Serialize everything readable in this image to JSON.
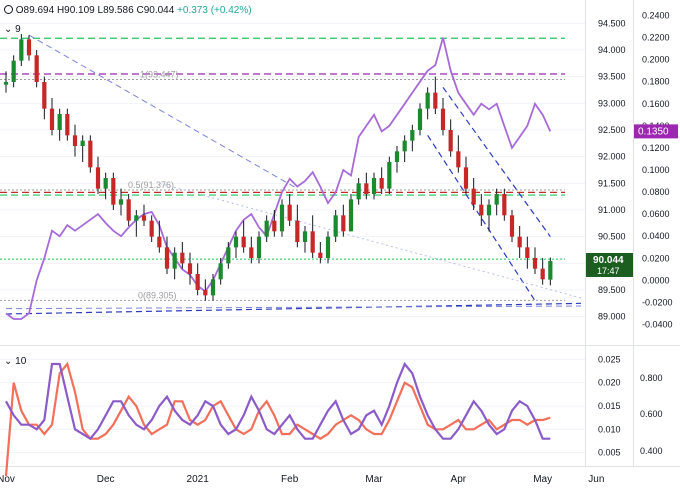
{
  "header": {
    "symbol_icon": "chart-circle-icon",
    "open": "O89.694",
    "high": "H90.109",
    "low": "L89.586",
    "close": "C90.044",
    "change": "+0.373 (+0.42%)",
    "top_indicator_len": "9",
    "bottom_indicator_len": "10"
  },
  "colors": {
    "up": "#1b8a2e",
    "down": "#c62828",
    "wick": "#131722",
    "indicator": "#a66ad9",
    "green_dash": "#22c55e",
    "purple_dash": "#9c27b0",
    "red_dash": "#c62828",
    "blue_dash": "#2b3bbd",
    "fib_grey": "#9e9e9e",
    "price_label_bg": "#1b5e20",
    "ind_label_bg": "#9c27b0",
    "atr_lower": "#f26f5a",
    "atr_upper": "#8b5cc9"
  },
  "chart_data": [
    {
      "type": "candlestick",
      "x_ticks": [
        "Nov",
        "Dec",
        "2021",
        "Feb",
        "Mar",
        "Apr",
        "May",
        "Jun"
      ],
      "left_axis_ticks": [
        "94.500",
        "94.000",
        "93.500",
        "93.000",
        "92.500",
        "92.000",
        "91.500",
        "91.000",
        "90.500",
        "90.000",
        "89.500",
        "89.000"
      ],
      "left_ylim": [
        88.75,
        94.75
      ],
      "right_axis_ticks": [
        "0.2400",
        "0.2200",
        "0.2000",
        "0.1800",
        "0.1600",
        "0.1400",
        "0.1200",
        "0.1000",
        "0.0800",
        "0.0600",
        "0.0400",
        "0.0200",
        "0.0000",
        "-0.0200",
        "-0.0400"
      ],
      "right_ylim": [
        -0.045,
        0.245
      ],
      "fib_labels": [
        "1(93.447)",
        "0.5(91.376)",
        "0(89.305)"
      ],
      "last_price_label": "90.044",
      "countdown_label": "17:47",
      "indicator_value_label": "0.1350",
      "horizontal_levels": [
        {
          "value": 94.22,
          "style": "green-dash"
        },
        {
          "value": 93.55,
          "style": "purple-dash"
        },
        {
          "value": 93.447,
          "style": "fib-grey"
        },
        {
          "value": 91.376,
          "style": "fib-grey"
        },
        {
          "value": 91.33,
          "style": "red-dash"
        },
        {
          "value": 91.28,
          "style": "green-dash"
        },
        {
          "value": 90.08,
          "style": "green-dot"
        },
        {
          "value": 89.305,
          "style": "fib-grey"
        }
      ],
      "candles": [
        [
          93.35,
          93.6,
          93.2,
          93.4
        ],
        [
          93.4,
          93.9,
          93.3,
          93.8
        ],
        [
          93.8,
          94.3,
          93.7,
          94.2
        ],
        [
          94.2,
          94.28,
          93.8,
          93.9
        ],
        [
          93.9,
          94.0,
          93.3,
          93.4
        ],
        [
          93.4,
          93.5,
          92.7,
          92.9
        ],
        [
          92.9,
          93.1,
          92.4,
          92.5
        ],
        [
          92.5,
          92.9,
          92.3,
          92.8
        ],
        [
          92.8,
          92.9,
          92.3,
          92.4
        ],
        [
          92.4,
          92.6,
          92.0,
          92.2
        ],
        [
          92.2,
          92.4,
          91.9,
          92.3
        ],
        [
          92.3,
          92.4,
          91.7,
          91.8
        ],
        [
          91.8,
          92.0,
          91.3,
          91.4
        ],
        [
          91.4,
          91.7,
          91.2,
          91.6
        ],
        [
          91.6,
          91.7,
          91.0,
          91.1
        ],
        [
          91.1,
          91.4,
          90.9,
          91.2
        ],
        [
          91.2,
          91.3,
          90.7,
          90.8
        ],
        [
          90.8,
          91.0,
          90.5,
          90.9
        ],
        [
          90.9,
          91.1,
          90.7,
          90.8
        ],
        [
          90.8,
          90.9,
          90.4,
          90.5
        ],
        [
          90.5,
          90.8,
          90.2,
          90.3
        ],
        [
          90.3,
          90.5,
          89.8,
          89.9
        ],
        [
          89.9,
          90.3,
          89.7,
          90.2
        ],
        [
          90.2,
          90.4,
          89.9,
          90.0
        ],
        [
          90.0,
          90.2,
          89.6,
          89.8
        ],
        [
          89.8,
          90.0,
          89.4,
          89.5
        ],
        [
          89.5,
          89.7,
          89.3,
          89.4
        ],
        [
          89.4,
          89.8,
          89.3,
          89.7
        ],
        [
          89.7,
          90.1,
          89.6,
          90.0
        ],
        [
          90.0,
          90.4,
          89.9,
          90.3
        ],
        [
          90.3,
          90.6,
          90.1,
          90.5
        ],
        [
          90.5,
          90.8,
          90.2,
          90.3
        ],
        [
          90.3,
          90.5,
          90.0,
          90.1
        ],
        [
          90.1,
          90.6,
          90.0,
          90.5
        ],
        [
          90.5,
          90.9,
          90.4,
          90.8
        ],
        [
          90.8,
          91.0,
          90.5,
          90.6
        ],
        [
          90.6,
          91.2,
          90.5,
          91.1
        ],
        [
          91.1,
          91.3,
          90.7,
          90.8
        ],
        [
          90.8,
          91.1,
          90.3,
          90.4
        ],
        [
          90.4,
          90.7,
          90.2,
          90.6
        ],
        [
          90.6,
          90.9,
          90.1,
          90.2
        ],
        [
          90.2,
          90.4,
          90.0,
          90.1
        ],
        [
          90.1,
          90.6,
          90.0,
          90.5
        ],
        [
          90.5,
          91.0,
          90.4,
          90.9
        ],
        [
          90.9,
          91.1,
          90.5,
          90.6
        ],
        [
          90.6,
          91.3,
          90.6,
          91.2
        ],
        [
          91.2,
          91.6,
          91.1,
          91.5
        ],
        [
          91.5,
          91.7,
          91.2,
          91.3
        ],
        [
          91.3,
          91.7,
          91.2,
          91.6
        ],
        [
          91.6,
          91.8,
          91.3,
          91.4
        ],
        [
          91.4,
          92.0,
          91.3,
          91.9
        ],
        [
          91.9,
          92.2,
          91.7,
          92.1
        ],
        [
          92.1,
          92.4,
          91.9,
          92.3
        ],
        [
          92.3,
          92.6,
          92.1,
          92.5
        ],
        [
          92.5,
          93.0,
          92.4,
          92.9
        ],
        [
          92.9,
          93.3,
          92.7,
          93.2
        ],
        [
          93.2,
          93.5,
          92.8,
          92.9
        ],
        [
          92.9,
          93.1,
          92.4,
          92.5
        ],
        [
          92.5,
          92.7,
          92.0,
          92.1
        ],
        [
          92.1,
          92.4,
          91.7,
          91.8
        ],
        [
          91.8,
          92.0,
          91.3,
          91.4
        ],
        [
          91.4,
          91.6,
          91.0,
          91.1
        ],
        [
          91.1,
          91.3,
          90.7,
          90.9
        ],
        [
          90.9,
          91.2,
          90.6,
          91.1
        ],
        [
          91.1,
          91.4,
          90.9,
          91.3
        ],
        [
          91.3,
          91.4,
          90.8,
          90.9
        ],
        [
          90.9,
          91.0,
          90.4,
          90.5
        ],
        [
          90.5,
          90.7,
          90.1,
          90.3
        ],
        [
          90.3,
          90.5,
          89.9,
          90.1
        ],
        [
          90.1,
          90.3,
          89.8,
          89.9
        ],
        [
          89.9,
          90.1,
          89.6,
          89.7
        ],
        [
          89.694,
          90.109,
          89.586,
          90.044
        ]
      ],
      "indicator_line": [
        -0.03,
        -0.035,
        -0.035,
        -0.03,
        0.0,
        0.02,
        0.045,
        0.04,
        0.05,
        0.045,
        0.05,
        0.055,
        0.06,
        0.052,
        0.045,
        0.04,
        0.048,
        0.055,
        0.06,
        0.062,
        0.05,
        0.03,
        0.02,
        0.01,
        0.005,
        -0.005,
        -0.01,
        0.0,
        0.015,
        0.03,
        0.045,
        0.055,
        0.06,
        0.048,
        0.04,
        0.06,
        0.08,
        0.092,
        0.085,
        0.09,
        0.098,
        0.085,
        0.07,
        0.08,
        0.1,
        0.095,
        0.13,
        0.14,
        0.15,
        0.135,
        0.14,
        0.15,
        0.16,
        0.17,
        0.18,
        0.19,
        0.195,
        0.22,
        0.19,
        0.17,
        0.16,
        0.15,
        0.16,
        0.155,
        0.16,
        0.14,
        0.12,
        0.13,
        0.14,
        0.16,
        0.15,
        0.135
      ],
      "trendlines": [
        {
          "name": "upper-channel",
          "from": [
            3,
            94.28
          ],
          "to": [
            38,
            91.4
          ],
          "style": "light-blue-dash"
        },
        {
          "name": "upper-channel-2",
          "from": [
            57,
            93.3
          ],
          "to": [
            71,
            90.5
          ],
          "style": "blue-dash"
        },
        {
          "name": "lower-channel",
          "from": [
            55,
            92.4
          ],
          "to": [
            69,
            89.3
          ],
          "style": "blue-dash"
        },
        {
          "name": "support-line",
          "from": [
            0,
            89.05
          ],
          "to": [
            75,
            89.25
          ],
          "style": "blue-dash"
        },
        {
          "name": "support-line-2",
          "from": [
            0,
            89.15
          ],
          "to": [
            75,
            89.2
          ],
          "style": "light-blue-dash"
        },
        {
          "name": "dotted-diagonal",
          "from": [
            20,
            91.5
          ],
          "to": [
            75,
            89.35
          ],
          "style": "light-blue-dot"
        }
      ]
    },
    {
      "type": "line",
      "right_axis_ticks": [
        "0.025",
        "0.020",
        "0.015",
        "0.010",
        "0.005"
      ],
      "ylim": [
        0.003,
        0.027
      ],
      "far_right_ticks": [
        "0.800",
        "0.600",
        "0.400"
      ],
      "series": [
        {
          "values": [
            0.0,
            0.02,
            0.014,
            0.011,
            0.011,
            0.009,
            0.011,
            0.022,
            0.024,
            0.018,
            0.01,
            0.008,
            0.008,
            0.009,
            0.011,
            0.014,
            0.017,
            0.015,
            0.011,
            0.009,
            0.01,
            0.011,
            0.016,
            0.016,
            0.012,
            0.011,
            0.012,
            0.015,
            0.016,
            0.013,
            0.01,
            0.009,
            0.01,
            0.014,
            0.016,
            0.013,
            0.009,
            0.009,
            0.011,
            0.01,
            0.009,
            0.008,
            0.009,
            0.011,
            0.012,
            0.013,
            0.012,
            0.01,
            0.009,
            0.009,
            0.012,
            0.016,
            0.02,
            0.019,
            0.015,
            0.011,
            0.01,
            0.01,
            0.011,
            0.012,
            0.01,
            0.01,
            0.011,
            0.012,
            0.01,
            0.011,
            0.012,
            0.012,
            0.011,
            0.012,
            0.012,
            0.0125
          ]
        },
        {
          "values": [
            0.016,
            0.013,
            0.011,
            0.011,
            0.01,
            0.012,
            0.024,
            0.024,
            0.017,
            0.01,
            0.009,
            0.008,
            0.01,
            0.013,
            0.016,
            0.016,
            0.013,
            0.011,
            0.01,
            0.012,
            0.015,
            0.017,
            0.014,
            0.012,
            0.011,
            0.013,
            0.016,
            0.015,
            0.011,
            0.009,
            0.01,
            0.013,
            0.017,
            0.014,
            0.01,
            0.009,
            0.011,
            0.013,
            0.01,
            0.008,
            0.008,
            0.011,
            0.014,
            0.016,
            0.012,
            0.009,
            0.01,
            0.013,
            0.014,
            0.011,
            0.015,
            0.02,
            0.024,
            0.022,
            0.017,
            0.013,
            0.01,
            0.008,
            0.008,
            0.01,
            0.013,
            0.016,
            0.014,
            0.011,
            0.009,
            0.01,
            0.014,
            0.016,
            0.015,
            0.012,
            0.008,
            0.008
          ]
        }
      ]
    }
  ]
}
